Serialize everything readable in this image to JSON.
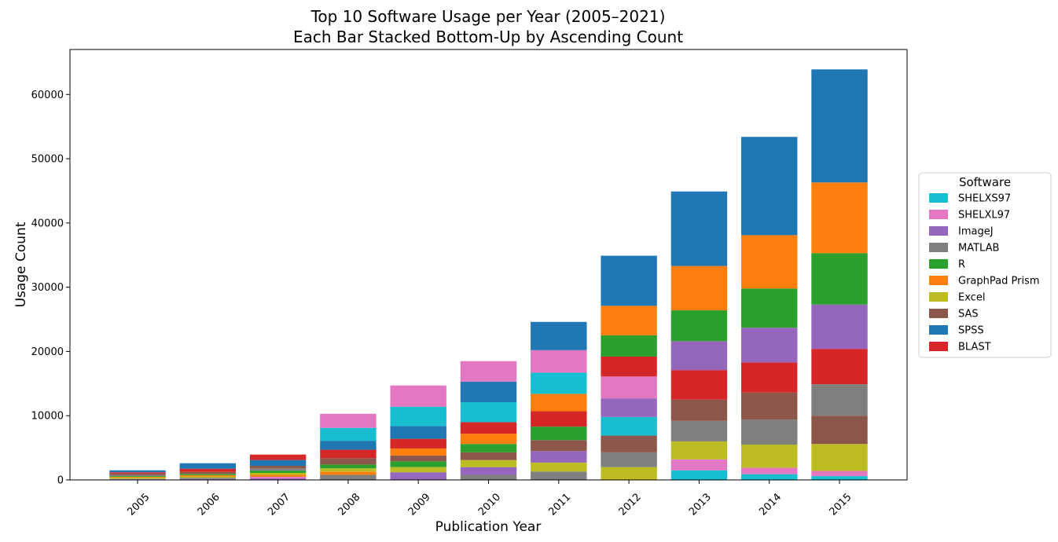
{
  "chart_data": {
    "type": "bar",
    "stacked": true,
    "title_lines": [
      "Top 10 Software Usage per Year (2005–2021)",
      "Each Bar Stacked Bottom-Up by Ascending Count"
    ],
    "xlabel": "Publication Year",
    "ylabel": "Usage Count",
    "categories": [
      "2005",
      "2006",
      "2007",
      "2008",
      "2009",
      "2010",
      "2011",
      "2012",
      "2013",
      "2014",
      "2015"
    ],
    "ylim": [
      0,
      67000
    ],
    "yticks": [
      0,
      10000,
      20000,
      30000,
      40000,
      50000,
      60000
    ],
    "legend": {
      "title": "Software",
      "placement": "right",
      "entries": [
        "SHELXS97",
        "SHELXL97",
        "ImageJ",
        "MATLAB",
        "R",
        "GraphPad Prism",
        "Excel",
        "SAS",
        "SPSS",
        "BLAST"
      ]
    },
    "colors": {
      "SHELXS97": "#17becf",
      "SHELXL97": "#e377c2",
      "ImageJ": "#9467bd",
      "MATLAB": "#7f7f7f",
      "R": "#2ca02c",
      "GraphPad Prism": "#ff7f0e",
      "Excel": "#bcbd22",
      "SAS": "#8c564b",
      "SPSS": "#1f77b4",
      "BLAST": "#d62728"
    },
    "stacks": [
      {
        "year": "2005",
        "segments": [
          {
            "name": "SHELXS97",
            "value": 80
          },
          {
            "name": "ImageJ",
            "value": 80
          },
          {
            "name": "Excel",
            "value": 200
          },
          {
            "name": "GraphPad Prism",
            "value": 120
          },
          {
            "name": "R",
            "value": 120
          },
          {
            "name": "MATLAB",
            "value": 200
          },
          {
            "name": "SAS",
            "value": 200
          },
          {
            "name": "BLAST",
            "value": 200
          },
          {
            "name": "SPSS",
            "value": 300
          }
        ]
      },
      {
        "year": "2006",
        "segments": [
          {
            "name": "ImageJ",
            "value": 150
          },
          {
            "name": "MATLAB",
            "value": 200
          },
          {
            "name": "Excel",
            "value": 200
          },
          {
            "name": "GraphPad Prism",
            "value": 200
          },
          {
            "name": "R",
            "value": 200
          },
          {
            "name": "SAS",
            "value": 300
          },
          {
            "name": "BLAST",
            "value": 500
          },
          {
            "name": "SPSS",
            "value": 850
          }
        ]
      },
      {
        "year": "2007",
        "segments": [
          {
            "name": "ImageJ",
            "value": 250
          },
          {
            "name": "SHELXL97",
            "value": 250
          },
          {
            "name": "GraphPad Prism",
            "value": 300
          },
          {
            "name": "Excel",
            "value": 300
          },
          {
            "name": "R",
            "value": 350
          },
          {
            "name": "MATLAB",
            "value": 350
          },
          {
            "name": "SAS",
            "value": 400
          },
          {
            "name": "SPSS",
            "value": 900
          },
          {
            "name": "BLAST",
            "value": 850
          }
        ]
      },
      {
        "year": "2008",
        "segments": [
          {
            "name": "MATLAB",
            "value": 800
          },
          {
            "name": "GraphPad Prism",
            "value": 500
          },
          {
            "name": "Excel",
            "value": 500
          },
          {
            "name": "R",
            "value": 600
          },
          {
            "name": "SAS",
            "value": 1000
          },
          {
            "name": "BLAST",
            "value": 1300
          },
          {
            "name": "SPSS",
            "value": 1400
          },
          {
            "name": "SHELXS97",
            "value": 2000
          },
          {
            "name": "SHELXL97",
            "value": 2200
          }
        ]
      },
      {
        "year": "2009",
        "segments": [
          {
            "name": "ImageJ",
            "value": 1200
          },
          {
            "name": "Excel",
            "value": 800
          },
          {
            "name": "R",
            "value": 900
          },
          {
            "name": "SAS",
            "value": 900
          },
          {
            "name": "GraphPad Prism",
            "value": 1100
          },
          {
            "name": "BLAST",
            "value": 1500
          },
          {
            "name": "SPSS",
            "value": 2000
          },
          {
            "name": "SHELXS97",
            "value": 3000
          },
          {
            "name": "SHELXL97",
            "value": 3300
          }
        ]
      },
      {
        "year": "2010",
        "segments": [
          {
            "name": "MATLAB",
            "value": 800
          },
          {
            "name": "ImageJ",
            "value": 1200
          },
          {
            "name": "Excel",
            "value": 1100
          },
          {
            "name": "SAS",
            "value": 1200
          },
          {
            "name": "R",
            "value": 1300
          },
          {
            "name": "GraphPad Prism",
            "value": 1600
          },
          {
            "name": "BLAST",
            "value": 1800
          },
          {
            "name": "SHELXS97",
            "value": 3100
          },
          {
            "name": "SPSS",
            "value": 3200
          },
          {
            "name": "SHELXL97",
            "value": 3200
          }
        ]
      },
      {
        "year": "2011",
        "segments": [
          {
            "name": "MATLAB",
            "value": 1300
          },
          {
            "name": "Excel",
            "value": 1400
          },
          {
            "name": "ImageJ",
            "value": 1800
          },
          {
            "name": "SAS",
            "value": 1700
          },
          {
            "name": "R",
            "value": 2100
          },
          {
            "name": "BLAST",
            "value": 2400
          },
          {
            "name": "GraphPad Prism",
            "value": 2700
          },
          {
            "name": "SHELXS97",
            "value": 3300
          },
          {
            "name": "SHELXL97",
            "value": 3500
          },
          {
            "name": "SPSS",
            "value": 4400
          }
        ]
      },
      {
        "year": "2012",
        "segments": [
          {
            "name": "Excel",
            "value": 2000
          },
          {
            "name": "MATLAB",
            "value": 2300
          },
          {
            "name": "SAS",
            "value": 2600
          },
          {
            "name": "SHELXS97",
            "value": 2900
          },
          {
            "name": "ImageJ",
            "value": 2900
          },
          {
            "name": "SHELXL97",
            "value": 3400
          },
          {
            "name": "BLAST",
            "value": 3100
          },
          {
            "name": "R",
            "value": 3300
          },
          {
            "name": "GraphPad Prism",
            "value": 4600
          },
          {
            "name": "SPSS",
            "value": 7800
          }
        ]
      },
      {
        "year": "2013",
        "segments": [
          {
            "name": "SHELXS97",
            "value": 1500
          },
          {
            "name": "SHELXL97",
            "value": 1700
          },
          {
            "name": "Excel",
            "value": 2800
          },
          {
            "name": "MATLAB",
            "value": 3200
          },
          {
            "name": "SAS",
            "value": 3300
          },
          {
            "name": "BLAST",
            "value": 4600
          },
          {
            "name": "ImageJ",
            "value": 4500
          },
          {
            "name": "R",
            "value": 4800
          },
          {
            "name": "GraphPad Prism",
            "value": 6900
          },
          {
            "name": "SPSS",
            "value": 11600
          }
        ]
      },
      {
        "year": "2014",
        "segments": [
          {
            "name": "SHELXS97",
            "value": 900
          },
          {
            "name": "SHELXL97",
            "value": 1000
          },
          {
            "name": "Excel",
            "value": 3600
          },
          {
            "name": "MATLAB",
            "value": 3900
          },
          {
            "name": "SAS",
            "value": 4200
          },
          {
            "name": "BLAST",
            "value": 4700
          },
          {
            "name": "ImageJ",
            "value": 5400
          },
          {
            "name": "R",
            "value": 6100
          },
          {
            "name": "GraphPad Prism",
            "value": 8300
          },
          {
            "name": "SPSS",
            "value": 15300
          }
        ]
      },
      {
        "year": "2015",
        "segments": [
          {
            "name": "SHELXS97",
            "value": 600
          },
          {
            "name": "SHELXL97",
            "value": 800
          },
          {
            "name": "Excel",
            "value": 4200
          },
          {
            "name": "SAS",
            "value": 4400
          },
          {
            "name": "MATLAB",
            "value": 4900
          },
          {
            "name": "BLAST",
            "value": 5500
          },
          {
            "name": "ImageJ",
            "value": 6900
          },
          {
            "name": "R",
            "value": 8000
          },
          {
            "name": "GraphPad Prism",
            "value": 11000
          },
          {
            "name": "SPSS",
            "value": 17600
          }
        ]
      }
    ]
  }
}
